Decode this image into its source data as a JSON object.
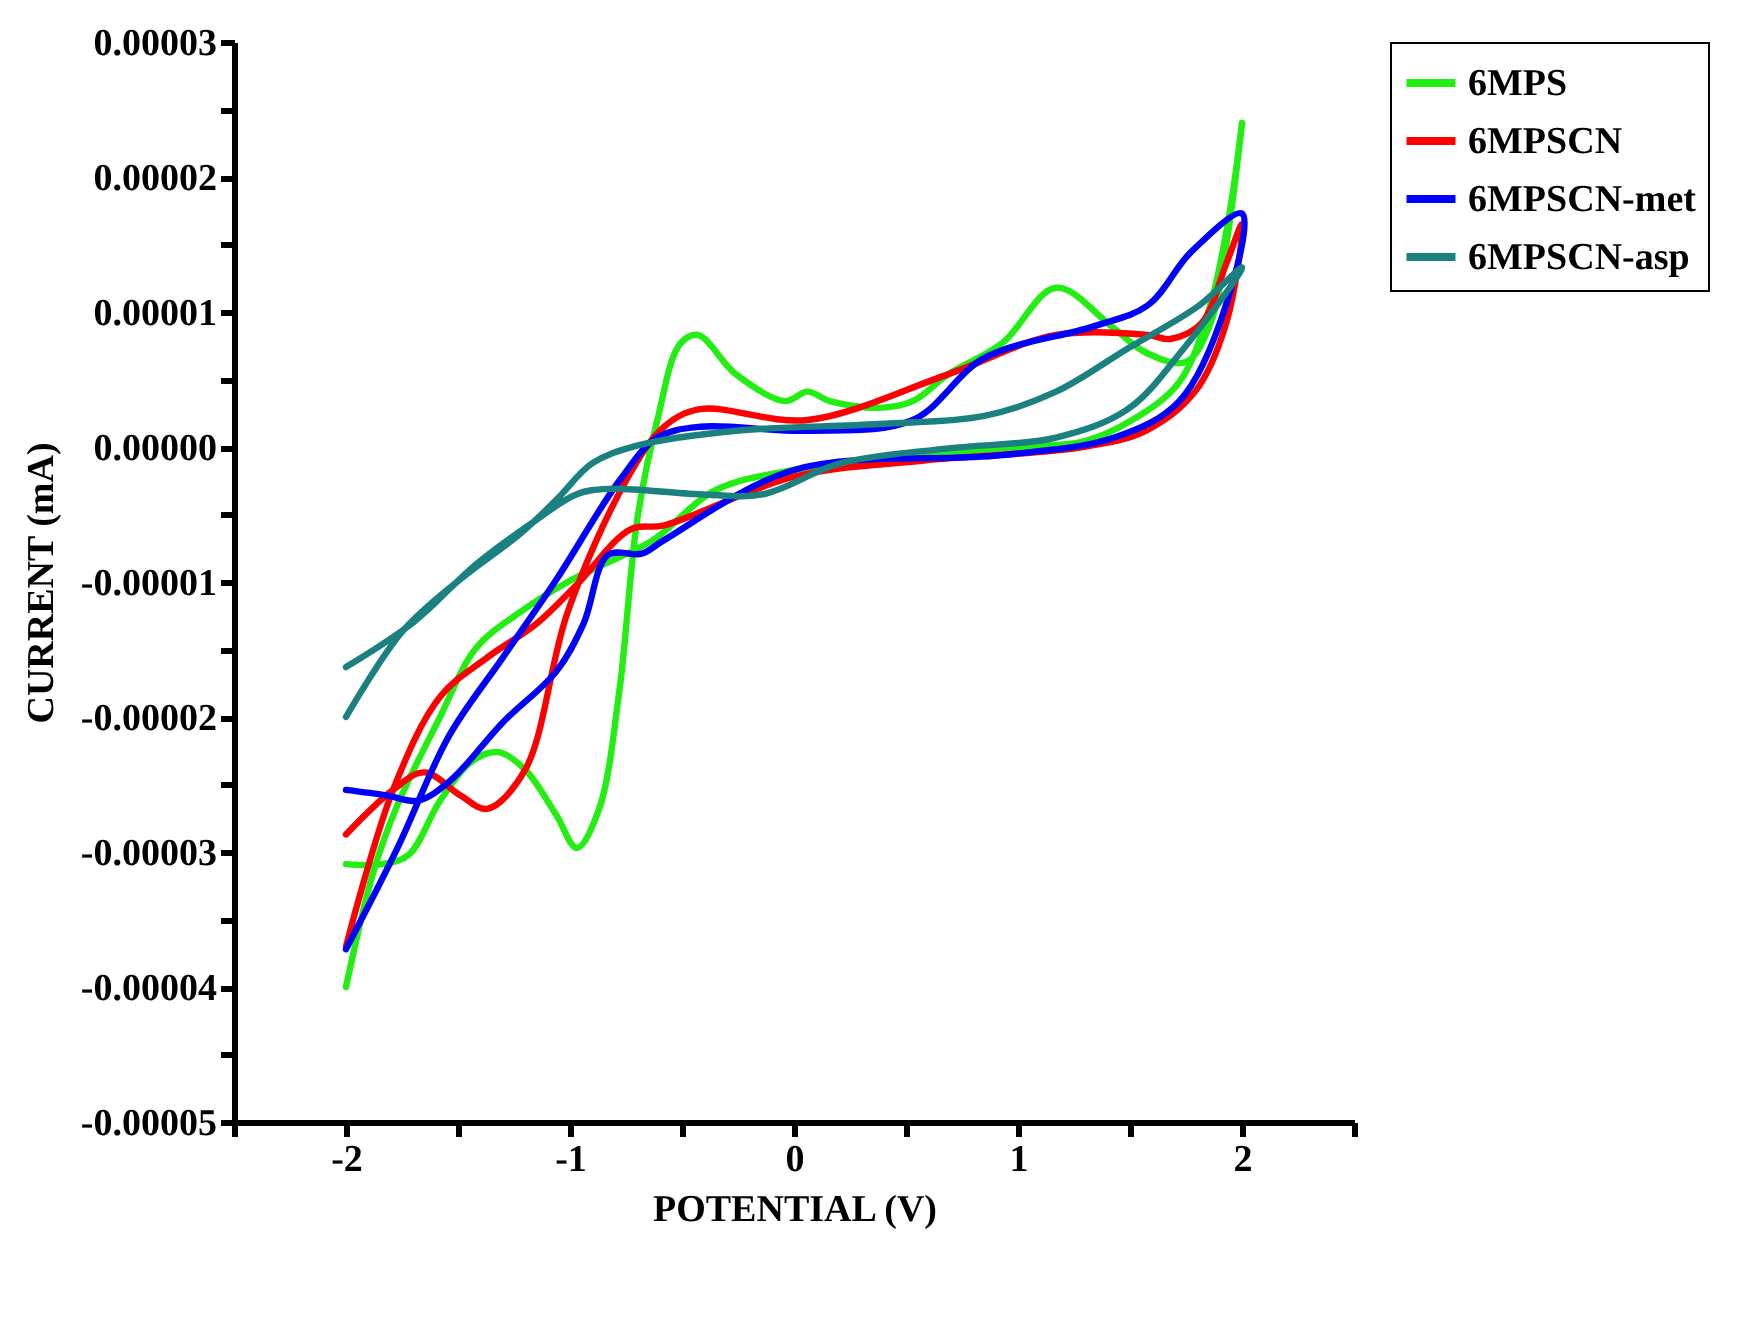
{
  "chart_data": {
    "type": "line",
    "xlabel": "POTENTIAL (V)",
    "ylabel": "CURRENT (mA)",
    "xlim": [
      -2.5,
      2.5
    ],
    "xticks": [
      {
        "value": -2.5,
        "label": null
      },
      -2,
      {
        "value": -1.5,
        "label": null
      },
      -1,
      {
        "value": -0.5,
        "label": null
      },
      0,
      {
        "value": 0.5,
        "label": null
      },
      1,
      {
        "value": 1.5,
        "label": null
      },
      2,
      {
        "value": 2.5,
        "label": null
      }
    ],
    "ylim": [
      -5e-05,
      3e-05
    ],
    "yticks": [
      {
        "value": -5e-05,
        "label": "-0.00005"
      },
      {
        "value": -4.5e-05,
        "label": null
      },
      {
        "value": -4e-05,
        "label": "-0.00004"
      },
      {
        "value": -3.5e-05,
        "label": null
      },
      {
        "value": -3e-05,
        "label": "-0.00003"
      },
      {
        "value": -2.5e-05,
        "label": null
      },
      {
        "value": -2e-05,
        "label": "-0.00002"
      },
      {
        "value": -1.5e-05,
        "label": null
      },
      {
        "value": -1e-05,
        "label": "-0.00001"
      },
      {
        "value": -5e-06,
        "label": null
      },
      {
        "value": 0,
        "label": "0.00000"
      },
      {
        "value": 5e-06,
        "label": null
      },
      {
        "value": 1e-05,
        "label": "0.00001"
      },
      {
        "value": 1.5e-05,
        "label": null
      },
      {
        "value": 2e-05,
        "label": "0.00002"
      },
      {
        "value": 2.5e-05,
        "label": null
      },
      {
        "value": 3e-05,
        "label": "0.00003"
      }
    ],
    "grid": false,
    "legend": "right",
    "marker": "none",
    "line_style": "solid",
    "series": [
      {
        "name": "6MPS",
        "color": "#22ee11",
        "x": [
          -2,
          -1.88,
          -1.77,
          -1.58,
          -1.42,
          -1.22,
          -1.01,
          -0.85,
          -0.63,
          -0.35,
          0,
          0.58,
          1,
          1.29,
          1.5,
          1.72,
          1.86,
          1.95,
          2,
          1.93,
          1.86,
          1.75,
          1.57,
          1.42,
          1.17,
          0.93,
          0.69,
          0.53,
          0.38,
          0.16,
          0.06,
          -0.04,
          -0.26,
          -0.43,
          -0.51,
          -0.61,
          -0.7,
          -0.78,
          -0.87,
          -0.97,
          -1.06,
          -1.2,
          -1.32,
          -1.44,
          -1.58,
          -1.72,
          -1.84,
          -2
        ],
        "values": [
          -4e-05,
          -3.16e-05,
          -2.65e-05,
          -2e-05,
          -1.49e-05,
          -1.22e-05,
          -1e-05,
          -8.7e-06,
          -6.9e-06,
          -3.2e-06,
          -1.7e-06,
          -6e-07,
          0,
          4e-07,
          1.9e-06,
          4.8e-06,
          1.06e-05,
          1.79e-05,
          2.4e-05,
          1.5e-05,
          9.2e-06,
          6.3e-06,
          7e-06,
          8.9e-06,
          1.18e-05,
          7.7e-06,
          5.4e-06,
          3.4e-06,
          2.9e-06,
          3.4e-06,
          4.1e-06,
          3.4e-06,
          5.4e-06,
          8.3e-06,
          7.6e-06,
          2e-06,
          -5.4e-06,
          -1.81e-05,
          -2.68e-05,
          -2.97e-05,
          -2.73e-05,
          -2.39e-05,
          -2.26e-05,
          -2.33e-05,
          -2.62e-05,
          -3.02e-05,
          -3.09e-05,
          -3.09e-05
        ]
      },
      {
        "name": "6MPSCN",
        "color": "#ff0000",
        "x": [
          -2,
          -1.79,
          -1.58,
          -1.37,
          -1.15,
          -0.97,
          -0.73,
          -0.58,
          0,
          0.58,
          1.29,
          1.57,
          1.79,
          1.93,
          2,
          1.93,
          1.82,
          1.68,
          1.58,
          1.17,
          0.69,
          0.06,
          -0.42,
          -0.58,
          -0.75,
          -1.01,
          -1.2,
          -1.37,
          -1.49,
          -1.65,
          -1.79,
          -2
        ],
        "values": [
          -3.7e-05,
          -2.54e-05,
          -1.85e-05,
          -1.56e-05,
          -1.31e-05,
          -1.02e-05,
          -6.1e-06,
          -5.8e-06,
          -2.2e-06,
          -1e-06,
          0,
          1.2e-06,
          4.1e-06,
          9.2e-06,
          1.65e-05,
          1.36e-05,
          9.2e-06,
          8e-06,
          8.3e-06,
          8.3e-06,
          5.4e-06,
          2e-06,
          2.8e-06,
          1.5e-06,
          -2.5e-06,
          -1.22e-05,
          -2.39e-05,
          -2.68e-05,
          -2.58e-05,
          -2.41e-05,
          -2.54e-05,
          -2.87e-05
        ]
      },
      {
        "name": "6MPSCN-met",
        "color": "#0000ff",
        "x": [
          -2,
          -1.82,
          -1.68,
          -1.54,
          -1.3,
          -1.06,
          -0.94,
          -0.83,
          -0.68,
          -0.58,
          0,
          0.93,
          1.43,
          1.72,
          1.93,
          2,
          1.77,
          1.58,
          1.33,
          0.85,
          0.53,
          0.06,
          -0.42,
          -0.61,
          -0.78,
          -1.06,
          -1.3,
          -1.54,
          -1.77,
          -2
        ],
        "values": [
          -2.54e-05,
          -2.58e-05,
          -2.62e-05,
          -2.48e-05,
          -2.04e-05,
          -1.66e-05,
          -1.31e-05,
          -8e-06,
          -7.9e-06,
          -6.9e-06,
          -1.7e-06,
          -6e-07,
          7e-07,
          3.4e-06,
          1.06e-05,
          1.73e-05,
          1.44e-05,
          1.05e-05,
          8.9e-06,
          6.6e-06,
          2e-06,
          1.2e-06,
          1.5e-06,
          7e-07,
          -2.5e-06,
          -9.8e-06,
          -1.56e-05,
          -2.14e-05,
          -2.97e-05,
          -3.72e-05
        ]
      },
      {
        "name": "6MPSCN-asp",
        "color": "#1a8080",
        "x": [
          -2,
          -1.7,
          -1.42,
          -1.15,
          -0.97,
          -0.83,
          -0.42,
          -0.14,
          0.21,
          0.69,
          1.17,
          1.49,
          1.74,
          2,
          1.81,
          1.49,
          1.17,
          0.85,
          0.38,
          -0.26,
          -0.7,
          -0.9,
          -1.06,
          -1.22,
          -1.49,
          -1.75,
          -2
        ],
        "values": [
          -1.63e-05,
          -1.3e-05,
          -8.7e-06,
          -5.4e-06,
          -3.5e-06,
          -3.1e-06,
          -3.5e-06,
          -3.5e-06,
          -1.2e-06,
          -1e-07,
          7e-07,
          2.8e-06,
          7.3e-06,
          1.33e-05,
          1.05e-05,
          7.3e-06,
          4.1e-06,
          2.3e-06,
          1.7e-06,
          1.2e-06,
          1e-07,
          -1.2e-06,
          -3.9e-06,
          -6.4e-06,
          -9.8e-06,
          -1.37e-05,
          -2e-05
        ]
      }
    ]
  }
}
